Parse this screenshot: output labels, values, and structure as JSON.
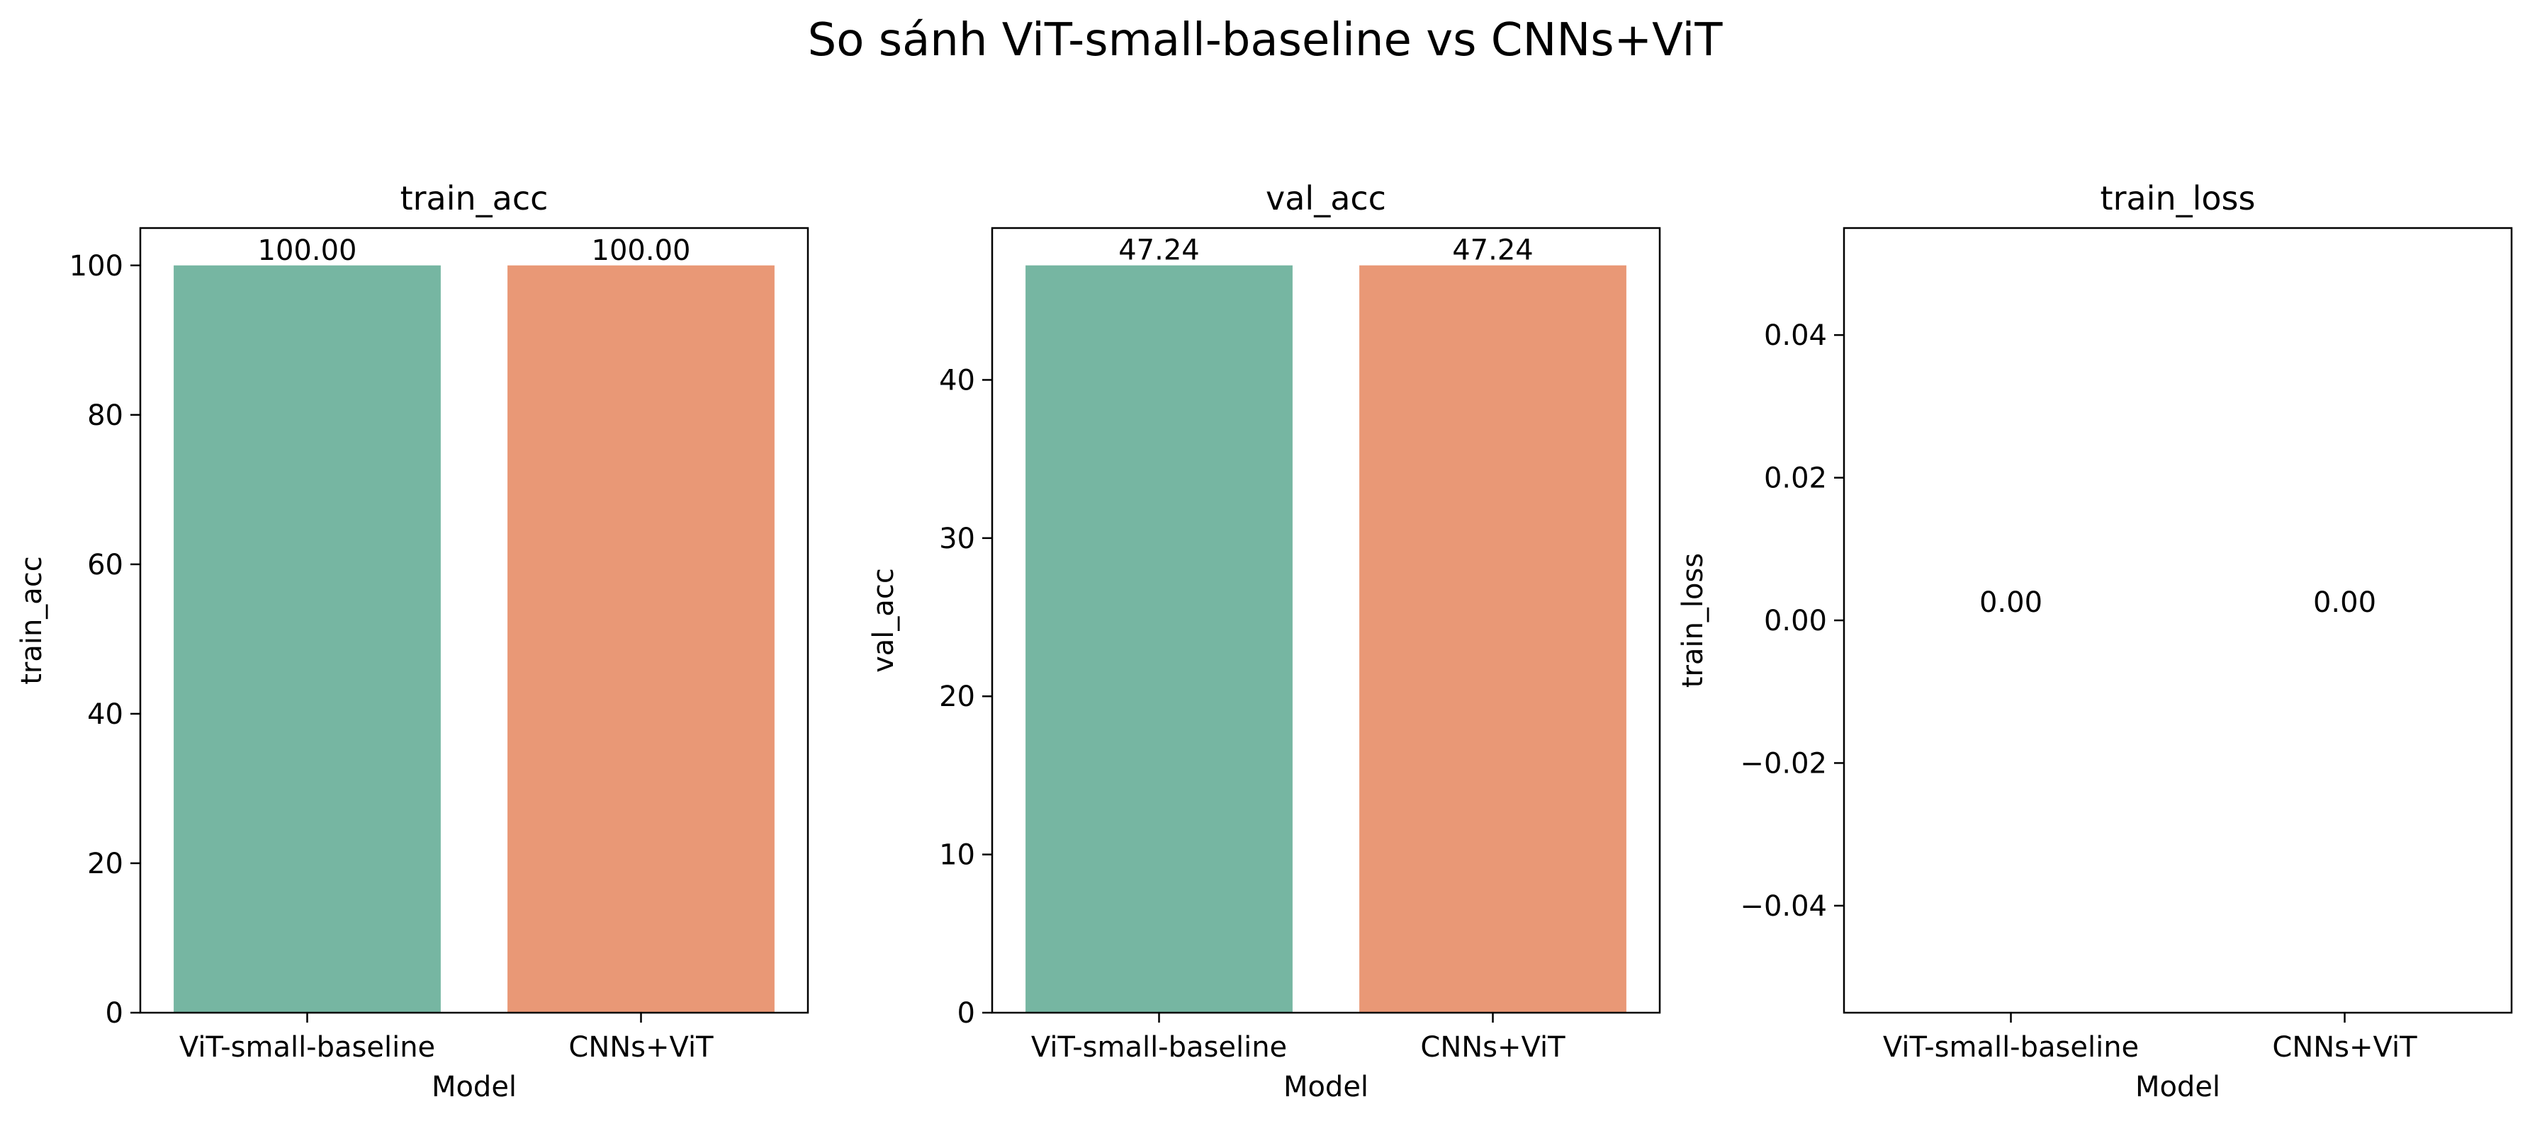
{
  "figure": {
    "title": "So sánh ViT-small-baseline vs CNNs+ViT"
  },
  "chart_data": [
    {
      "type": "bar",
      "title": "train_acc",
      "xlabel": "Model",
      "ylabel": "train_acc",
      "categories": [
        "ViT-small-baseline",
        "CNNs+ViT"
      ],
      "values": [
        100.0,
        100.0
      ],
      "value_labels": [
        "100.00",
        "100.00"
      ],
      "colors": [
        "#76b6a2",
        "#e99876"
      ],
      "ylim": [
        0,
        105
      ],
      "yticks": [
        0,
        20,
        40,
        60,
        80,
        100
      ],
      "ytick_labels": [
        "0",
        "20",
        "40",
        "60",
        "80",
        "100"
      ],
      "grid": false
    },
    {
      "type": "bar",
      "title": "val_acc",
      "xlabel": "Model",
      "ylabel": "val_acc",
      "categories": [
        "ViT-small-baseline",
        "CNNs+ViT"
      ],
      "values": [
        47.24,
        47.24
      ],
      "value_labels": [
        "47.24",
        "47.24"
      ],
      "colors": [
        "#76b6a2",
        "#e99876"
      ],
      "ylim": [
        0,
        49.6
      ],
      "yticks": [
        0,
        10,
        20,
        30,
        40
      ],
      "ytick_labels": [
        "0",
        "10",
        "20",
        "30",
        "40"
      ],
      "grid": false
    },
    {
      "type": "bar",
      "title": "train_loss",
      "xlabel": "Model",
      "ylabel": "train_loss",
      "categories": [
        "ViT-small-baseline",
        "CNNs+ViT"
      ],
      "values": [
        0.0,
        0.0
      ],
      "value_labels": [
        "0.00",
        "0.00"
      ],
      "colors": [
        "#76b6a2",
        "#e99876"
      ],
      "ylim": [
        -0.055,
        0.055
      ],
      "yticks": [
        -0.04,
        -0.02,
        0.0,
        0.02,
        0.04
      ],
      "ytick_labels": [
        "−0.04",
        "−0.02",
        "0.00",
        "0.02",
        "0.04"
      ],
      "grid": false
    }
  ]
}
